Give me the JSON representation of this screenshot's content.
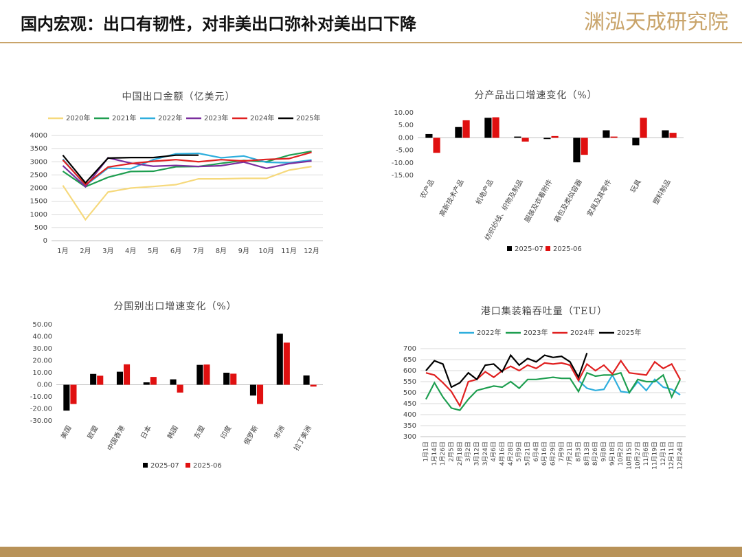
{
  "header": {
    "title": "国内宏观：出口有韧性，对非美出口弥补对美出口下降",
    "logo": "渊泓天成研究院"
  },
  "chart_data": [
    {
      "type": "line",
      "title": "中国出口金额（亿美元）",
      "categories": [
        "1月",
        "2月",
        "3月",
        "4月",
        "5月",
        "6月",
        "7月",
        "8月",
        "9月",
        "10月",
        "11月",
        "12月"
      ],
      "ylim": [
        0,
        4000
      ],
      "yticks": [
        0,
        500,
        1000,
        1500,
        2000,
        2500,
        3000,
        3500,
        4000
      ],
      "grid": true,
      "series": [
        {
          "name": "2020年",
          "color": "#f6d97c",
          "values": [
            2100,
            800,
            1850,
            2000,
            2060,
            2130,
            2350,
            2350,
            2370,
            2370,
            2680,
            2820
          ]
        },
        {
          "name": "2021年",
          "color": "#1e9e50",
          "values": [
            2640,
            2050,
            2410,
            2630,
            2640,
            2810,
            2820,
            2940,
            3050,
            3000,
            3250,
            3400
          ]
        },
        {
          "name": "2022年",
          "color": "#2eaedd",
          "values": [
            3100,
            2100,
            2760,
            2730,
            3080,
            3300,
            3320,
            3150,
            3220,
            2980,
            2960,
            3070
          ]
        },
        {
          "name": "2023年",
          "color": "#7a2e9e",
          "values": [
            2850,
            2050,
            3150,
            2950,
            2830,
            2860,
            2820,
            2850,
            2990,
            2750,
            2930,
            3030
          ]
        },
        {
          "name": "2024年",
          "color": "#e02020",
          "values": [
            3070,
            2130,
            2800,
            2930,
            3020,
            3080,
            3000,
            3080,
            3030,
            3090,
            3120,
            3360
          ]
        },
        {
          "name": "2025年",
          "color": "#000000",
          "values": [
            3250,
            2200,
            3140,
            3160,
            3160,
            3250,
            3250,
            null,
            null,
            null,
            null,
            null
          ]
        }
      ]
    },
    {
      "type": "bar",
      "title": "分产品出口增速变化（%）",
      "categories": [
        "农产品",
        "高新技术产品",
        "机电产品",
        "纺织纱线、织物及制品",
        "服装及衣着附件",
        "箱包及类似容器",
        "家具及其零件",
        "玩具",
        "塑料制品"
      ],
      "ylim": [
        -15,
        10
      ],
      "yticks": [
        {
          "value": -15,
          "label": "-15.00"
        },
        {
          "value": -10,
          "label": "-10.00"
        },
        {
          "value": -5,
          "label": "-5.00"
        },
        {
          "value": 0,
          "label": "0.00"
        },
        {
          "value": 5,
          "label": "5.00"
        },
        {
          "value": 10,
          "label": "10.00"
        }
      ],
      "grid": false,
      "series": [
        {
          "name": "2025-07",
          "color": "#000000",
          "values": [
            1.5,
            4.3,
            8.0,
            0.5,
            -0.5,
            -9.8,
            3.0,
            -3.0,
            3.0
          ]
        },
        {
          "name": "2025-06",
          "color": "#e01010",
          "values": [
            -6.0,
            7.0,
            8.2,
            -1.5,
            0.7,
            -6.8,
            0.5,
            8.0,
            2.0
          ]
        }
      ]
    },
    {
      "type": "bar",
      "title": "分国别出口增速变化（%）",
      "categories": [
        "美国",
        "欧盟",
        "中国香港",
        "日本",
        "韩国",
        "东盟",
        "印度",
        "俄罗斯",
        "非洲",
        "拉丁美洲"
      ],
      "ylim": [
        -30,
        50
      ],
      "yticks": [
        {
          "value": -30,
          "label": "-30.00"
        },
        {
          "value": -20,
          "label": "-20.00"
        },
        {
          "value": -10,
          "label": "-10.00"
        },
        {
          "value": 0,
          "label": "0.00"
        },
        {
          "value": 10,
          "label": "10.00"
        },
        {
          "value": 20,
          "label": "20.00"
        },
        {
          "value": 30,
          "label": "30.00"
        },
        {
          "value": 40,
          "label": "40.00"
        },
        {
          "value": 50,
          "label": "50.00"
        }
      ],
      "grid": false,
      "series": [
        {
          "name": "2025-07",
          "color": "#000000",
          "values": [
            -21.5,
            9.0,
            10.8,
            2.0,
            4.5,
            16.5,
            10.0,
            -9.0,
            42.4,
            7.7
          ]
        },
        {
          "name": "2025-06",
          "color": "#e01010",
          "values": [
            -16.0,
            7.5,
            17.0,
            6.5,
            -6.5,
            16.8,
            9.2,
            -16.0,
            35.0,
            -1.5
          ]
        }
      ]
    },
    {
      "type": "line",
      "title": "港口集装箱吞吐量（TEU）",
      "categories": [
        "1月1日",
        "1月14日",
        "1月26日",
        "2月5日",
        "2月18日",
        "3月2日",
        "3月12日",
        "3月24日",
        "4月6日",
        "4月16日",
        "4月28日",
        "5月9日",
        "5月21日",
        "6月4日",
        "6月16日",
        "6月29日",
        "7月9日",
        "7月21日",
        "8月3日",
        "8月13日",
        "8月26日",
        "9月8日",
        "9月18日",
        "10月2日",
        "10月15日",
        "10月27日",
        "11月6日",
        "11月19日",
        "12月1日",
        "12月11日",
        "12月24日"
      ],
      "ylim": [
        300,
        700
      ],
      "yticks": [
        300,
        350,
        400,
        450,
        500,
        550,
        600,
        650,
        700
      ],
      "grid": true,
      "series": [
        {
          "name": "2022年",
          "color": "#2eaedd",
          "values": [
            null,
            null,
            null,
            null,
            null,
            null,
            null,
            null,
            null,
            null,
            null,
            null,
            null,
            null,
            null,
            null,
            null,
            null,
            555,
            520,
            510,
            515,
            580,
            505,
            500,
            550,
            510,
            560,
            525,
            515,
            490
          ]
        },
        {
          "name": "2023年",
          "color": "#1e9e50",
          "values": [
            470,
            545,
            480,
            430,
            420,
            470,
            510,
            520,
            530,
            525,
            550,
            520,
            560,
            560,
            565,
            570,
            565,
            565,
            505,
            590,
            575,
            580,
            580,
            590,
            500,
            560,
            550,
            550,
            580,
            480,
            560
          ]
        },
        {
          "name": "2024年",
          "color": "#e02020",
          "values": [
            590,
            580,
            545,
            505,
            440,
            550,
            560,
            595,
            570,
            600,
            620,
            600,
            625,
            610,
            635,
            630,
            635,
            625,
            555,
            630,
            600,
            625,
            585,
            645,
            590,
            585,
            580,
            640,
            610,
            630,
            560
          ]
        },
        {
          "name": "2025年",
          "color": "#000000",
          "values": [
            600,
            645,
            630,
            525,
            545,
            590,
            560,
            625,
            630,
            595,
            670,
            625,
            655,
            640,
            670,
            660,
            665,
            640,
            570,
            680,
            null,
            null,
            null,
            null,
            null,
            null,
            null,
            null,
            null,
            null,
            null
          ]
        }
      ]
    }
  ]
}
